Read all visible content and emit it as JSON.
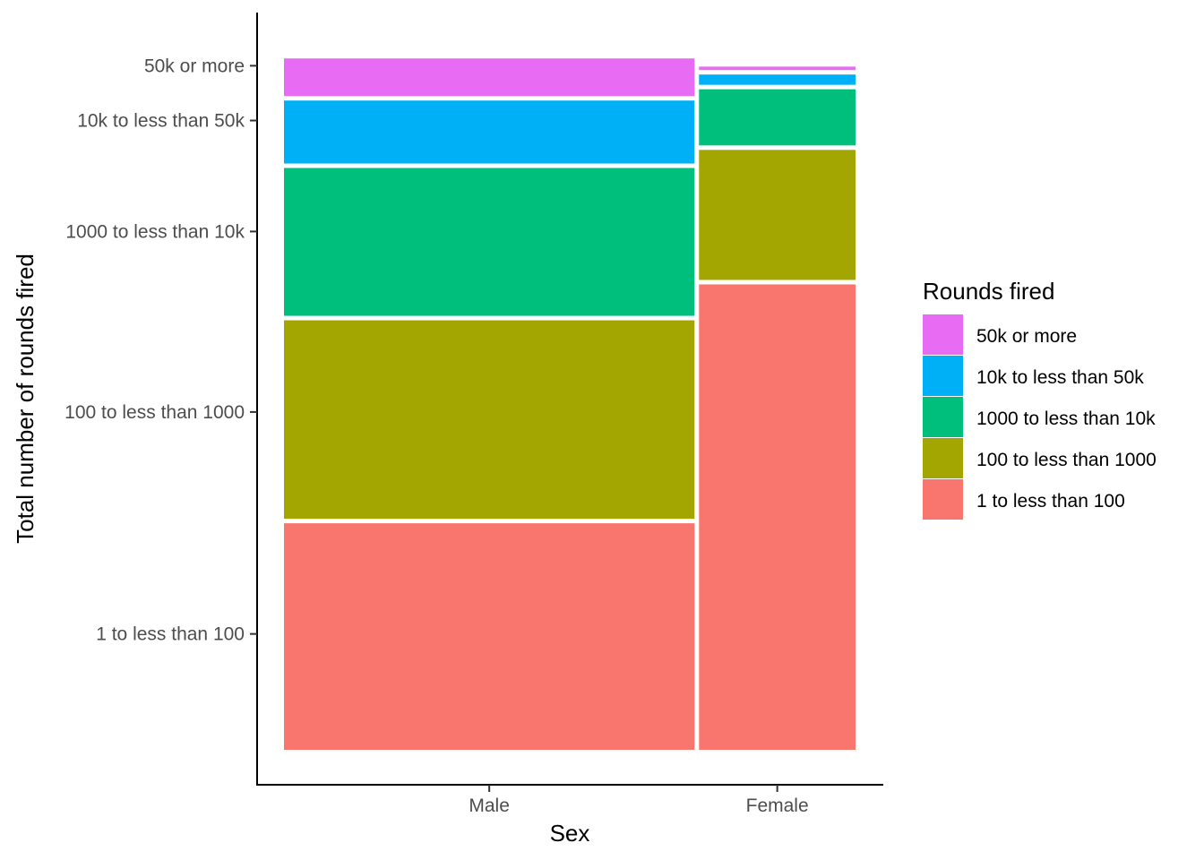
{
  "chart_data": {
    "type": "mosaic",
    "title": "",
    "xlabel": "Sex",
    "ylabel": "Total number of rounds fired",
    "x_categories": [
      "Male",
      "Female"
    ],
    "x_widths": [
      0.724,
      0.276
    ],
    "y_categories": [
      "1 to less than 100",
      "100 to less than 1000",
      "1000 to less than 10k",
      "10k to less than 50k",
      "50k or more"
    ],
    "y_tick_labels": [
      "1 to less than 100",
      "100 to less than 1000",
      "1000 to less than 10k",
      "10k to less than 50k",
      "50k or more"
    ],
    "y_tick_positions": [
      0.165,
      0.481,
      0.738,
      0.896,
      0.974
    ],
    "series": [
      {
        "name": "1 to less than 100",
        "color": "#F8766D",
        "values": [
          0.331,
          0.68
        ]
      },
      {
        "name": "100 to less than 1000",
        "color": "#A3A500",
        "values": [
          0.29,
          0.19
        ]
      },
      {
        "name": "1000 to less than 10k",
        "color": "#00BF7D",
        "values": [
          0.216,
          0.082
        ]
      },
      {
        "name": "10k to less than 50k",
        "color": "#00B0F6",
        "values": [
          0.092,
          0.015
        ]
      },
      {
        "name": "50k or more",
        "color": "#E76BF3",
        "values": [
          0.055,
          0.005
        ]
      }
    ],
    "legend": {
      "title": "Rounds fired",
      "position": "right",
      "items": [
        "50k or more",
        "10k to less than 50k",
        "1000 to less than 10k",
        "100 to less than 1000",
        "1 to less than 100"
      ]
    },
    "grid": false
  }
}
